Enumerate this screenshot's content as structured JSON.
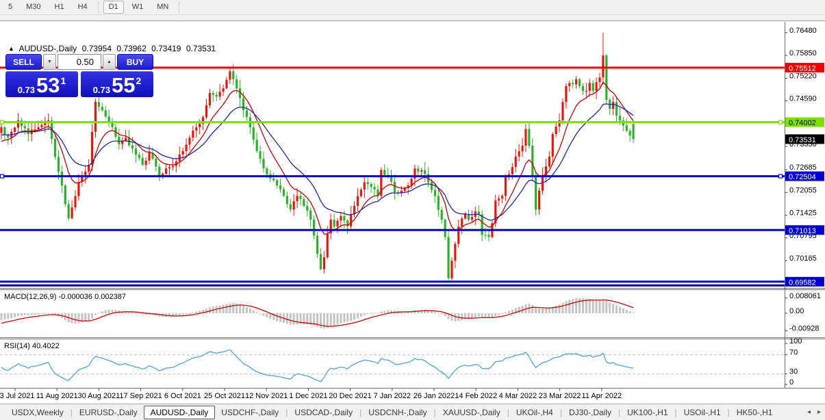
{
  "toolbar": {
    "buttons": [
      {
        "label": "5",
        "active": false,
        "sep_after": false
      },
      {
        "label": "M30",
        "active": false,
        "sep_after": false
      },
      {
        "label": "H1",
        "active": false,
        "sep_after": false
      },
      {
        "label": "H4",
        "active": false,
        "sep_after": true
      },
      {
        "label": "D1",
        "active": true,
        "sep_after": false
      },
      {
        "label": "W1",
        "active": false,
        "sep_after": false
      },
      {
        "label": "MN",
        "active": false,
        "sep_after": true
      }
    ]
  },
  "chart_header": {
    "toggle_icon": "▲",
    "symbol": "AUDUSD-,Daily",
    "open": "0.73954",
    "high": "0.73962",
    "low": "0.73419",
    "close": "0.73531"
  },
  "trade_panel": {
    "sell_label": "SELL",
    "buy_label": "BUY",
    "volume": "0.50",
    "spin_down_icon": "▼",
    "spin_up_icon": "▲",
    "sell_price_prefix": "0.73",
    "sell_price_big": "53",
    "sell_price_sup": "1",
    "buy_price_prefix": "0.73",
    "buy_price_big": "55",
    "buy_price_sup": "2"
  },
  "indicators": {
    "macd": {
      "label": "MACD(12,26,9)",
      "values": "-0.000036 0.002387",
      "axis": [
        "0.008061",
        "0.00",
        "-0.00928"
      ],
      "axis_values": [
        0.008061,
        0.0,
        -0.00928
      ]
    },
    "rsi": {
      "label": "RSI(14)",
      "value": "40.4022",
      "axis": [
        "100",
        "70",
        "30",
        "0"
      ],
      "axis_values": [
        100,
        70,
        30,
        0
      ],
      "level_lines": [
        70,
        30
      ]
    }
  },
  "chart_data": {
    "type": "candlestick",
    "symbol": "AUDUSD-, Daily",
    "ylim": [
      0.6942,
      0.7675
    ],
    "y_axis_ticks": [
      0.7648,
      0.7585,
      0.7522,
      0.7459,
      0.7333,
      0.72685,
      0.72055,
      0.71425,
      0.70795,
      0.70165
    ],
    "x_axis_dates": [
      "23 Jul 2021",
      "11 Aug 2021",
      "30 Aug 2021",
      "17 Sep 2021",
      "6 Oct 2021",
      "25 Oct 2021",
      "12 Nov 2021",
      "1 Dec 2021",
      "20 Dec 2021",
      "7 Jan 2022",
      "26 Jan 2022",
      "14 Feb 2022",
      "4 Mar 2022",
      "23 Mar 2022",
      "11 Apr 2022"
    ],
    "current_price_badge": {
      "text": "0.73531",
      "price": 0.73531,
      "bg": "#000000",
      "fg": "#ffffff"
    },
    "levels": [
      {
        "price": 0.75512,
        "color": "#fe0000",
        "badge": {
          "text": "0.75512",
          "bg": "#f00000",
          "fg": "#ffffff"
        },
        "handles": false
      },
      {
        "price": 0.74002,
        "color": "#7ce000",
        "badge": {
          "text": "0.74002",
          "bg": "#7ce000",
          "fg": "#000000"
        },
        "handles": true
      },
      {
        "price": 0.72504,
        "color": "#0000d6",
        "badge": {
          "text": "0.72504",
          "bg": "#0000d6",
          "fg": "#ffffff"
        },
        "handles": true
      },
      {
        "price": 0.71013,
        "color": "#0000d6",
        "badge": {
          "text": "0.71013",
          "bg": "#0000d6",
          "fg": "#ffffff"
        },
        "handles": false
      },
      {
        "price": 0.69582,
        "color": "#0000d6",
        "badge": {
          "text": "0.69582",
          "bg": "#0000d6",
          "fg": "#ffffff"
        },
        "handles": false
      },
      {
        "price": 0.6948,
        "color": "#000080",
        "badge": null,
        "handles": false
      }
    ],
    "candle_count": 189,
    "close_anchors": [
      [
        0,
        0.7386
      ],
      [
        2,
        0.7357
      ],
      [
        5,
        0.7405
      ],
      [
        8,
        0.7367
      ],
      [
        11,
        0.7386
      ],
      [
        14,
        0.7405
      ],
      [
        17,
        0.7263
      ],
      [
        20,
        0.7134
      ],
      [
        23,
        0.7234
      ],
      [
        26,
        0.7282
      ],
      [
        28,
        0.7456
      ],
      [
        30,
        0.7433
      ],
      [
        33,
        0.7386
      ],
      [
        35,
        0.7339
      ],
      [
        37,
        0.7357
      ],
      [
        40,
        0.731
      ],
      [
        42,
        0.7282
      ],
      [
        44,
        0.7316
      ],
      [
        47,
        0.7248
      ],
      [
        49,
        0.7272
      ],
      [
        52,
        0.7291
      ],
      [
        54,
        0.732
      ],
      [
        56,
        0.7357
      ],
      [
        58,
        0.7386
      ],
      [
        60,
        0.7414
      ],
      [
        62,
        0.7481
      ],
      [
        64,
        0.7471
      ],
      [
        66,
        0.7494
      ],
      [
        68,
        0.7541
      ],
      [
        70,
        0.7494
      ],
      [
        72,
        0.7433
      ],
      [
        74,
        0.7386
      ],
      [
        76,
        0.732
      ],
      [
        78,
        0.7272
      ],
      [
        80,
        0.7244
      ],
      [
        82,
        0.7225
      ],
      [
        84,
        0.7196
      ],
      [
        86,
        0.7158
      ],
      [
        88,
        0.7196
      ],
      [
        90,
        0.7168
      ],
      [
        92,
        0.713
      ],
      [
        94,
        0.7035
      ],
      [
        95,
        0.6993
      ],
      [
        96,
        0.7026
      ],
      [
        97,
        0.7092
      ],
      [
        98,
        0.713
      ],
      [
        99,
        0.7111
      ],
      [
        101,
        0.714
      ],
      [
        103,
        0.7111
      ],
      [
        105,
        0.7168
      ],
      [
        108,
        0.7234
      ],
      [
        110,
        0.7221
      ],
      [
        112,
        0.7196
      ],
      [
        113,
        0.7268
      ],
      [
        115,
        0.7253
      ],
      [
        117,
        0.7206
      ],
      [
        119,
        0.721
      ],
      [
        121,
        0.7225
      ],
      [
        123,
        0.7272
      ],
      [
        125,
        0.7267
      ],
      [
        127,
        0.7234
      ],
      [
        129,
        0.7196
      ],
      [
        131,
        0.713
      ],
      [
        132,
        0.7082
      ],
      [
        133,
        0.6968
      ],
      [
        134,
        0.7016
      ],
      [
        135,
        0.7063
      ],
      [
        136,
        0.7111
      ],
      [
        138,
        0.7145
      ],
      [
        139,
        0.713
      ],
      [
        141,
        0.7153
      ],
      [
        142,
        0.7145
      ],
      [
        143,
        0.7088
      ],
      [
        145,
        0.7082
      ],
      [
        146,
        0.712
      ],
      [
        147,
        0.7183
      ],
      [
        149,
        0.7196
      ],
      [
        150,
        0.7248
      ],
      [
        152,
        0.7276
      ],
      [
        153,
        0.7305
      ],
      [
        155,
        0.7335
      ],
      [
        156,
        0.7381
      ],
      [
        157,
        0.7335
      ],
      [
        158,
        0.7248
      ],
      [
        159,
        0.7158
      ],
      [
        160,
        0.721
      ],
      [
        161,
        0.7253
      ],
      [
        163,
        0.7305
      ],
      [
        164,
        0.7367
      ],
      [
        166,
        0.7405
      ],
      [
        167,
        0.7456
      ],
      [
        168,
        0.75
      ],
      [
        170,
        0.7505
      ],
      [
        171,
        0.7519
      ],
      [
        172,
        0.75
      ],
      [
        174,
        0.7487
      ],
      [
        175,
        0.7509
      ],
      [
        176,
        0.7487
      ],
      [
        178,
        0.7524
      ],
      [
        179,
        0.7585
      ],
      [
        180,
        0.7462
      ],
      [
        181,
        0.7437
      ],
      [
        182,
        0.7456
      ],
      [
        183,
        0.7418
      ],
      [
        184,
        0.7405
      ],
      [
        185,
        0.7391
      ],
      [
        186,
        0.7376
      ],
      [
        188,
        0.7353
      ]
    ],
    "prehistory_anchors": [
      [
        -30,
        0.76
      ],
      [
        -22,
        0.748
      ],
      [
        -12,
        0.731
      ],
      [
        -6,
        0.7289
      ],
      [
        -1,
        0.737
      ]
    ],
    "forced_candles": {
      "95": {
        "low": 0.699
      },
      "133": {
        "low": 0.6962
      },
      "179": {
        "high": 0.7648
      },
      "188": {
        "open": 0.73954,
        "high": 0.73962,
        "low": 0.73419,
        "close": 0.73531
      }
    },
    "moving_averages": [
      {
        "period": 9,
        "color": "#c80000"
      },
      {
        "period": 20,
        "color": "#2323a8"
      }
    ],
    "colors": {
      "bull": "#ea150b",
      "bear": "#2ab22a",
      "macd_hist": "#c4c4c4",
      "macd_signal": "#cc0000",
      "rsi": "#4da2e0",
      "rsi_level": "#bdbdbd"
    }
  },
  "tabs": {
    "items": [
      {
        "label": "USDX,Weekly",
        "active": false
      },
      {
        "label": "EURUSD-,Daily",
        "active": false
      },
      {
        "label": "AUDUSD-,Daily",
        "active": true
      },
      {
        "label": "USDCHF-,Daily",
        "active": false
      },
      {
        "label": "USDCAD-,Daily",
        "active": false
      },
      {
        "label": "USDCNH-,Daily",
        "active": false
      },
      {
        "label": "XAUUSD-,Daily",
        "active": false
      },
      {
        "label": "UKOil-,H4",
        "active": false
      },
      {
        "label": "DJ30-,Daily",
        "active": false
      },
      {
        "label": "UK100-,H1",
        "active": false
      },
      {
        "label": "USOil-,H1",
        "active": false
      },
      {
        "label": "HK50-,H1",
        "active": false
      }
    ],
    "scroll_left_icon": "◂",
    "scroll_right_icon": "▸"
  }
}
